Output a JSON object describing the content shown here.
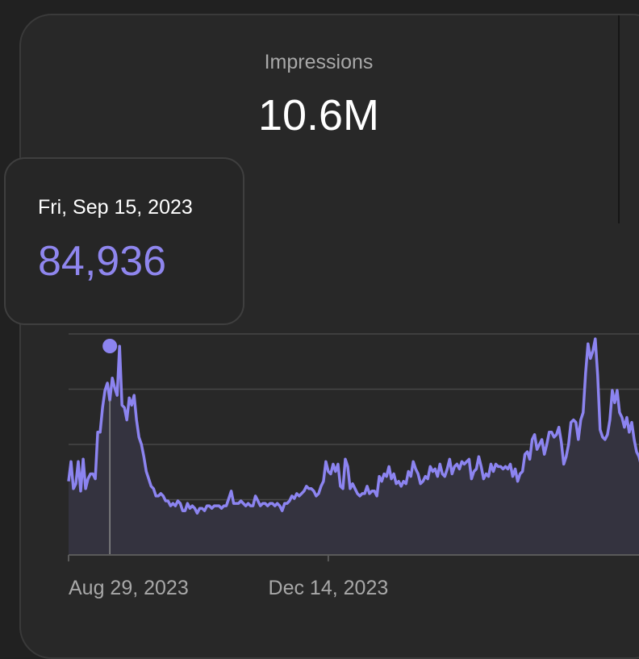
{
  "metric": {
    "label": "Impressions",
    "value": "10.6M"
  },
  "tooltip": {
    "date": "Fri, Sep 15, 2023",
    "value": "84,936"
  },
  "colors": {
    "line": "#8c84f0",
    "area": "#34333f",
    "grid": "#474747",
    "axis": "#5a5a5a"
  },
  "chart_data": {
    "type": "area",
    "title": "Impressions",
    "x_ticks": [
      "Aug 29, 2023",
      "Dec 14, 2023"
    ],
    "highlight": {
      "x": "2023-09-15",
      "value": 84936
    },
    "x_start": "2023-08-29",
    "ylim": [
      0,
      90000
    ],
    "grid": true,
    "values": [
      30000,
      38000,
      27000,
      29000,
      38000,
      26000,
      39000,
      27000,
      31000,
      33000,
      33000,
      31000,
      50000,
      50000,
      60000,
      67000,
      70000,
      63000,
      72000,
      68000,
      65000,
      85000,
      61000,
      60000,
      55000,
      64000,
      61000,
      65000,
      55000,
      48000,
      45000,
      40000,
      34000,
      31000,
      28000,
      27000,
      24000,
      24000,
      25000,
      24000,
      22000,
      22000,
      20000,
      21000,
      20000,
      22000,
      21000,
      18000,
      18000,
      21000,
      19000,
      20000,
      19000,
      17000,
      19000,
      19000,
      18000,
      20000,
      20000,
      19000,
      20000,
      20000,
      20000,
      19000,
      20000,
      20000,
      23000,
      26000,
      21000,
      21000,
      21000,
      22000,
      21000,
      20000,
      21000,
      20000,
      20000,
      24000,
      22000,
      20000,
      21000,
      21000,
      20000,
      21000,
      21000,
      20000,
      21000,
      20000,
      18000,
      21000,
      21000,
      22000,
      24000,
      23000,
      25000,
      24000,
      25000,
      26000,
      28000,
      27000,
      27000,
      26000,
      24000,
      25000,
      28000,
      30000,
      38000,
      34000,
      33000,
      37000,
      34000,
      37000,
      28000,
      27000,
      39000,
      36000,
      27000,
      29000,
      27000,
      25000,
      24000,
      25000,
      25000,
      28000,
      25000,
      26000,
      26000,
      24000,
      32000,
      30000,
      33000,
      32000,
      36000,
      31000,
      33000,
      29000,
      30000,
      28000,
      30000,
      29000,
      34000,
      32000,
      38000,
      35000,
      33000,
      29000,
      30000,
      32000,
      31000,
      36000,
      34000,
      35000,
      32000,
      37000,
      33000,
      32000,
      35000,
      39000,
      33000,
      36000,
      37000,
      35000,
      38000,
      37000,
      38000,
      39000,
      31000,
      34000,
      35000,
      40000,
      36000,
      31000,
      33000,
      32000,
      37000,
      34000,
      37000,
      36000,
      36000,
      35000,
      36000,
      35000,
      37000,
      32000,
      35000,
      30000,
      33000,
      34000,
      41000,
      42000,
      39000,
      47000,
      49000,
      43000,
      45000,
      47000,
      41000,
      45000,
      50000,
      50000,
      48000,
      49000,
      52000,
      46000,
      37000,
      40000,
      45000,
      54000,
      55000,
      54000,
      47000,
      55000,
      58000,
      74000,
      86000,
      80000,
      83000,
      88000,
      73000,
      51000,
      48000,
      47000,
      49000,
      55000,
      67000,
      62000,
      67000,
      58000,
      56000,
      52000,
      56000,
      50000,
      54000,
      47000,
      42000,
      40000,
      36000,
      33000
    ]
  }
}
